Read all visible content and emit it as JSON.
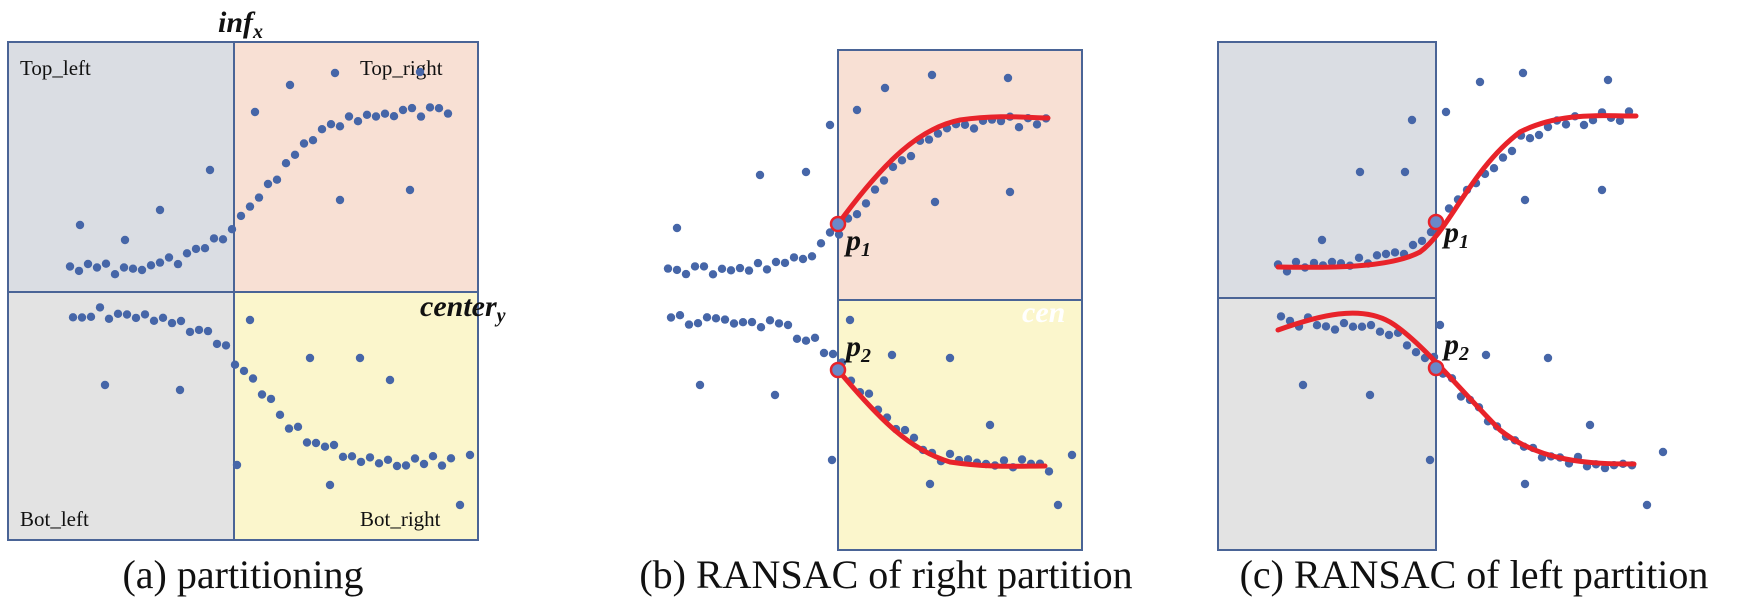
{
  "panel_a": {
    "title_main": "inf",
    "title_sub": "x",
    "center_main": "center",
    "center_sub": "y",
    "quadrants": {
      "top_left": "Top_left",
      "top_right": "Top_right",
      "bot_left": "Bot_left",
      "bot_right": "Bot_right"
    },
    "caption": "(a) partitioning"
  },
  "panel_b": {
    "p1_main": "p",
    "p1_sub": "1",
    "p2_main": "p",
    "p2_sub": "2",
    "ghost_text": "cen",
    "caption": "(b) RANSAC of right partition"
  },
  "panel_c": {
    "p1_main": "p",
    "p1_sub": "1",
    "p2_main": "p",
    "p2_sub": "2",
    "caption": "(c) RANSAC of left partition"
  },
  "colors": {
    "top_left_fill": "#dadde3",
    "top_right_fill": "#f8e0d4",
    "bot_left_fill": "#e3e3e3",
    "bot_right_fill": "#fbf6cc",
    "box_stroke": "#4a6496",
    "point": "#4666a8",
    "curve": "#e8232a"
  }
}
